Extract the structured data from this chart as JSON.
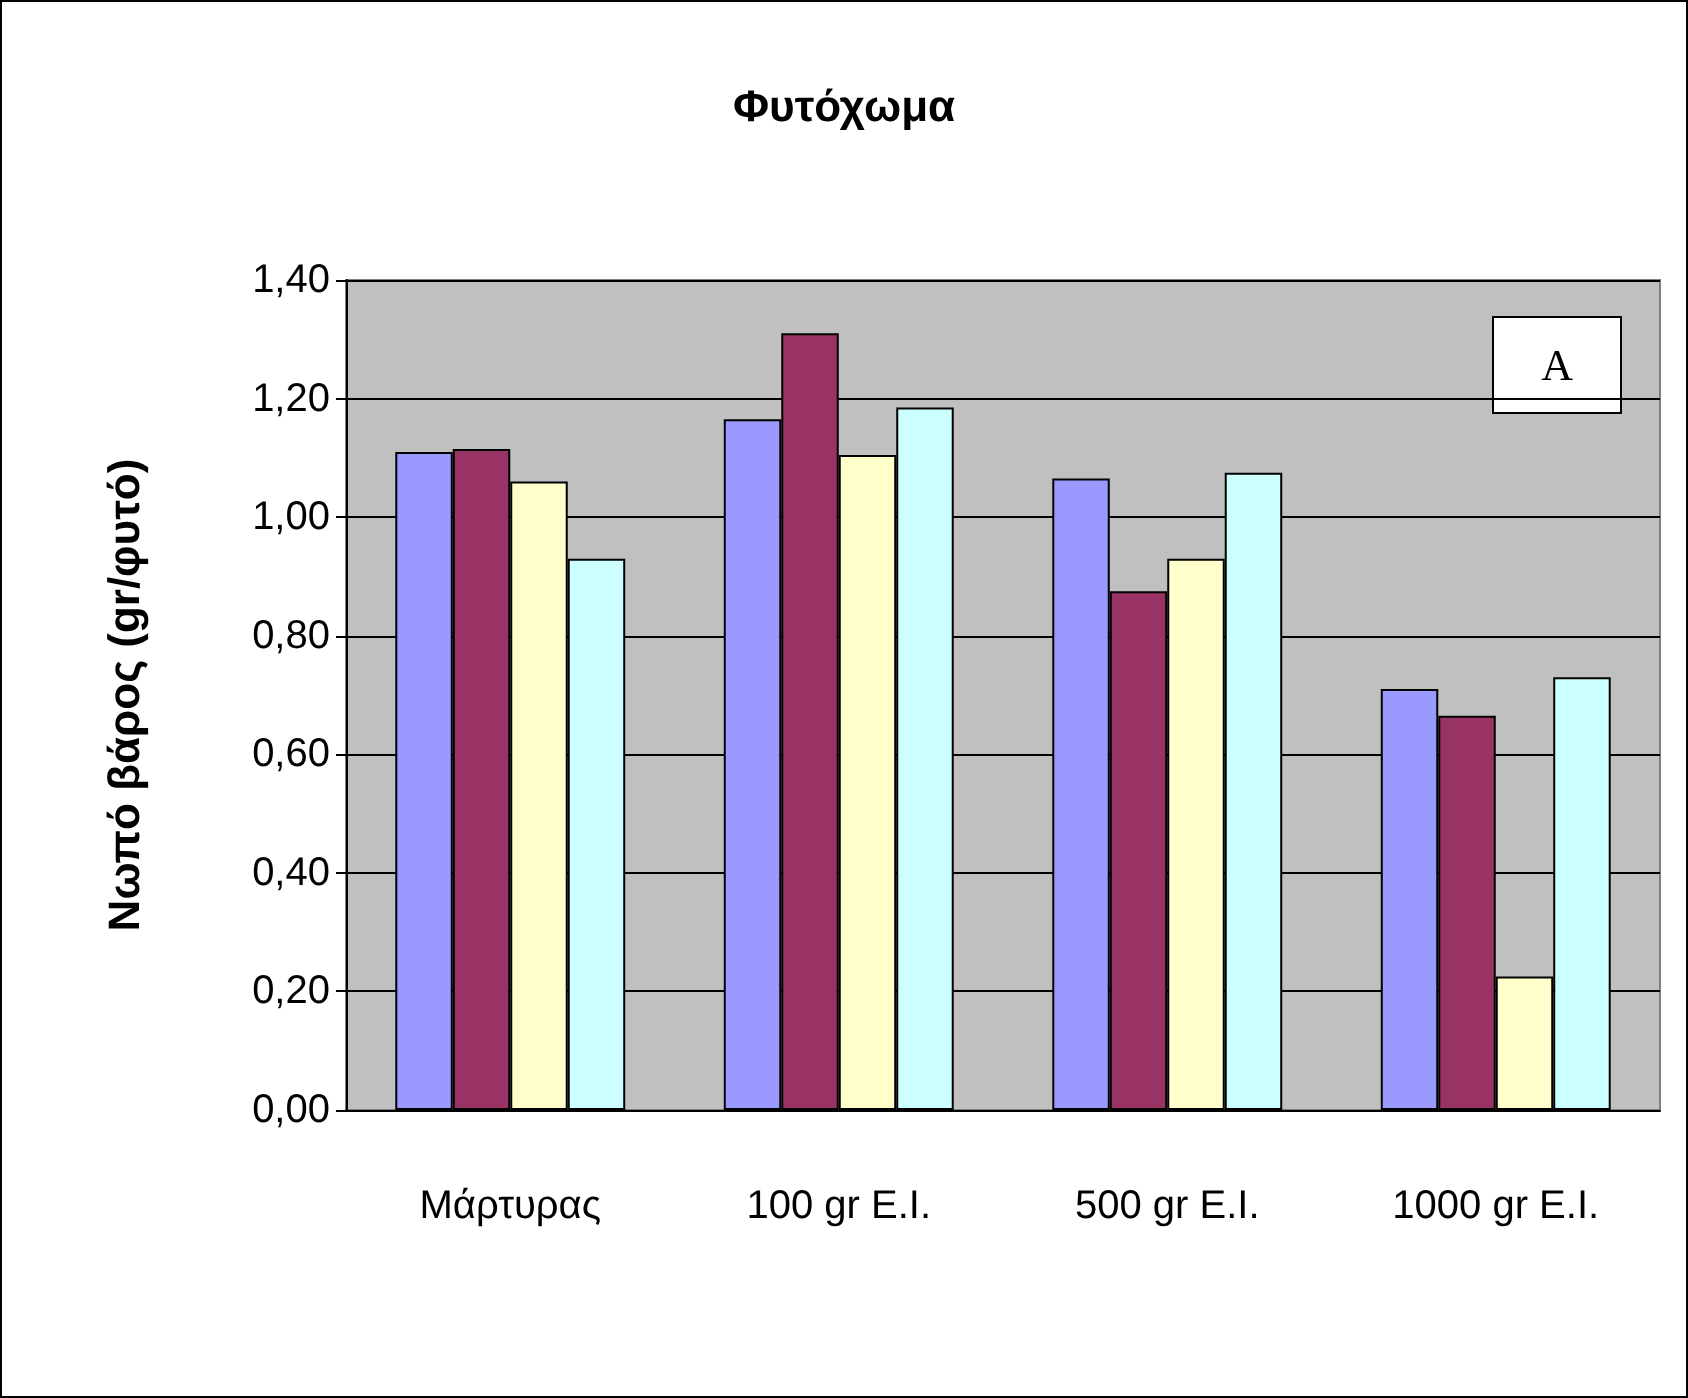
{
  "chart_data": {
    "type": "bar",
    "title": "Φυτόχωμα",
    "ylabel": "Νωπό βάρος (gr/φυτό)",
    "categories": [
      "Μάρτυρας",
      "100 gr E.I.",
      "500 gr E.I.",
      "1000 gr E.I."
    ],
    "series": [
      {
        "color": "#9999ff",
        "values": [
          1.11,
          1.165,
          1.065,
          0.71
        ]
      },
      {
        "color": "#993366",
        "values": [
          1.115,
          1.31,
          0.875,
          0.665
        ]
      },
      {
        "color": "#ffffcc",
        "values": [
          1.06,
          1.105,
          0.93,
          0.225
        ]
      },
      {
        "color": "#ccffff",
        "values": [
          0.93,
          1.185,
          1.075,
          0.73
        ]
      }
    ],
    "ylim": [
      0,
      1.4
    ],
    "yticks": [
      {
        "value": 0,
        "label": "0,00"
      },
      {
        "value": 0.2,
        "label": "0,20"
      },
      {
        "value": 0.4,
        "label": "0,40"
      },
      {
        "value": 0.6,
        "label": "0,60"
      },
      {
        "value": 0.8,
        "label": "0,80"
      },
      {
        "value": 1.0,
        "label": "1,00"
      },
      {
        "value": 1.2,
        "label": "1,20"
      },
      {
        "value": 1.4,
        "label": "1,40"
      }
    ],
    "grid": "y",
    "annotations": [
      "A"
    ]
  }
}
